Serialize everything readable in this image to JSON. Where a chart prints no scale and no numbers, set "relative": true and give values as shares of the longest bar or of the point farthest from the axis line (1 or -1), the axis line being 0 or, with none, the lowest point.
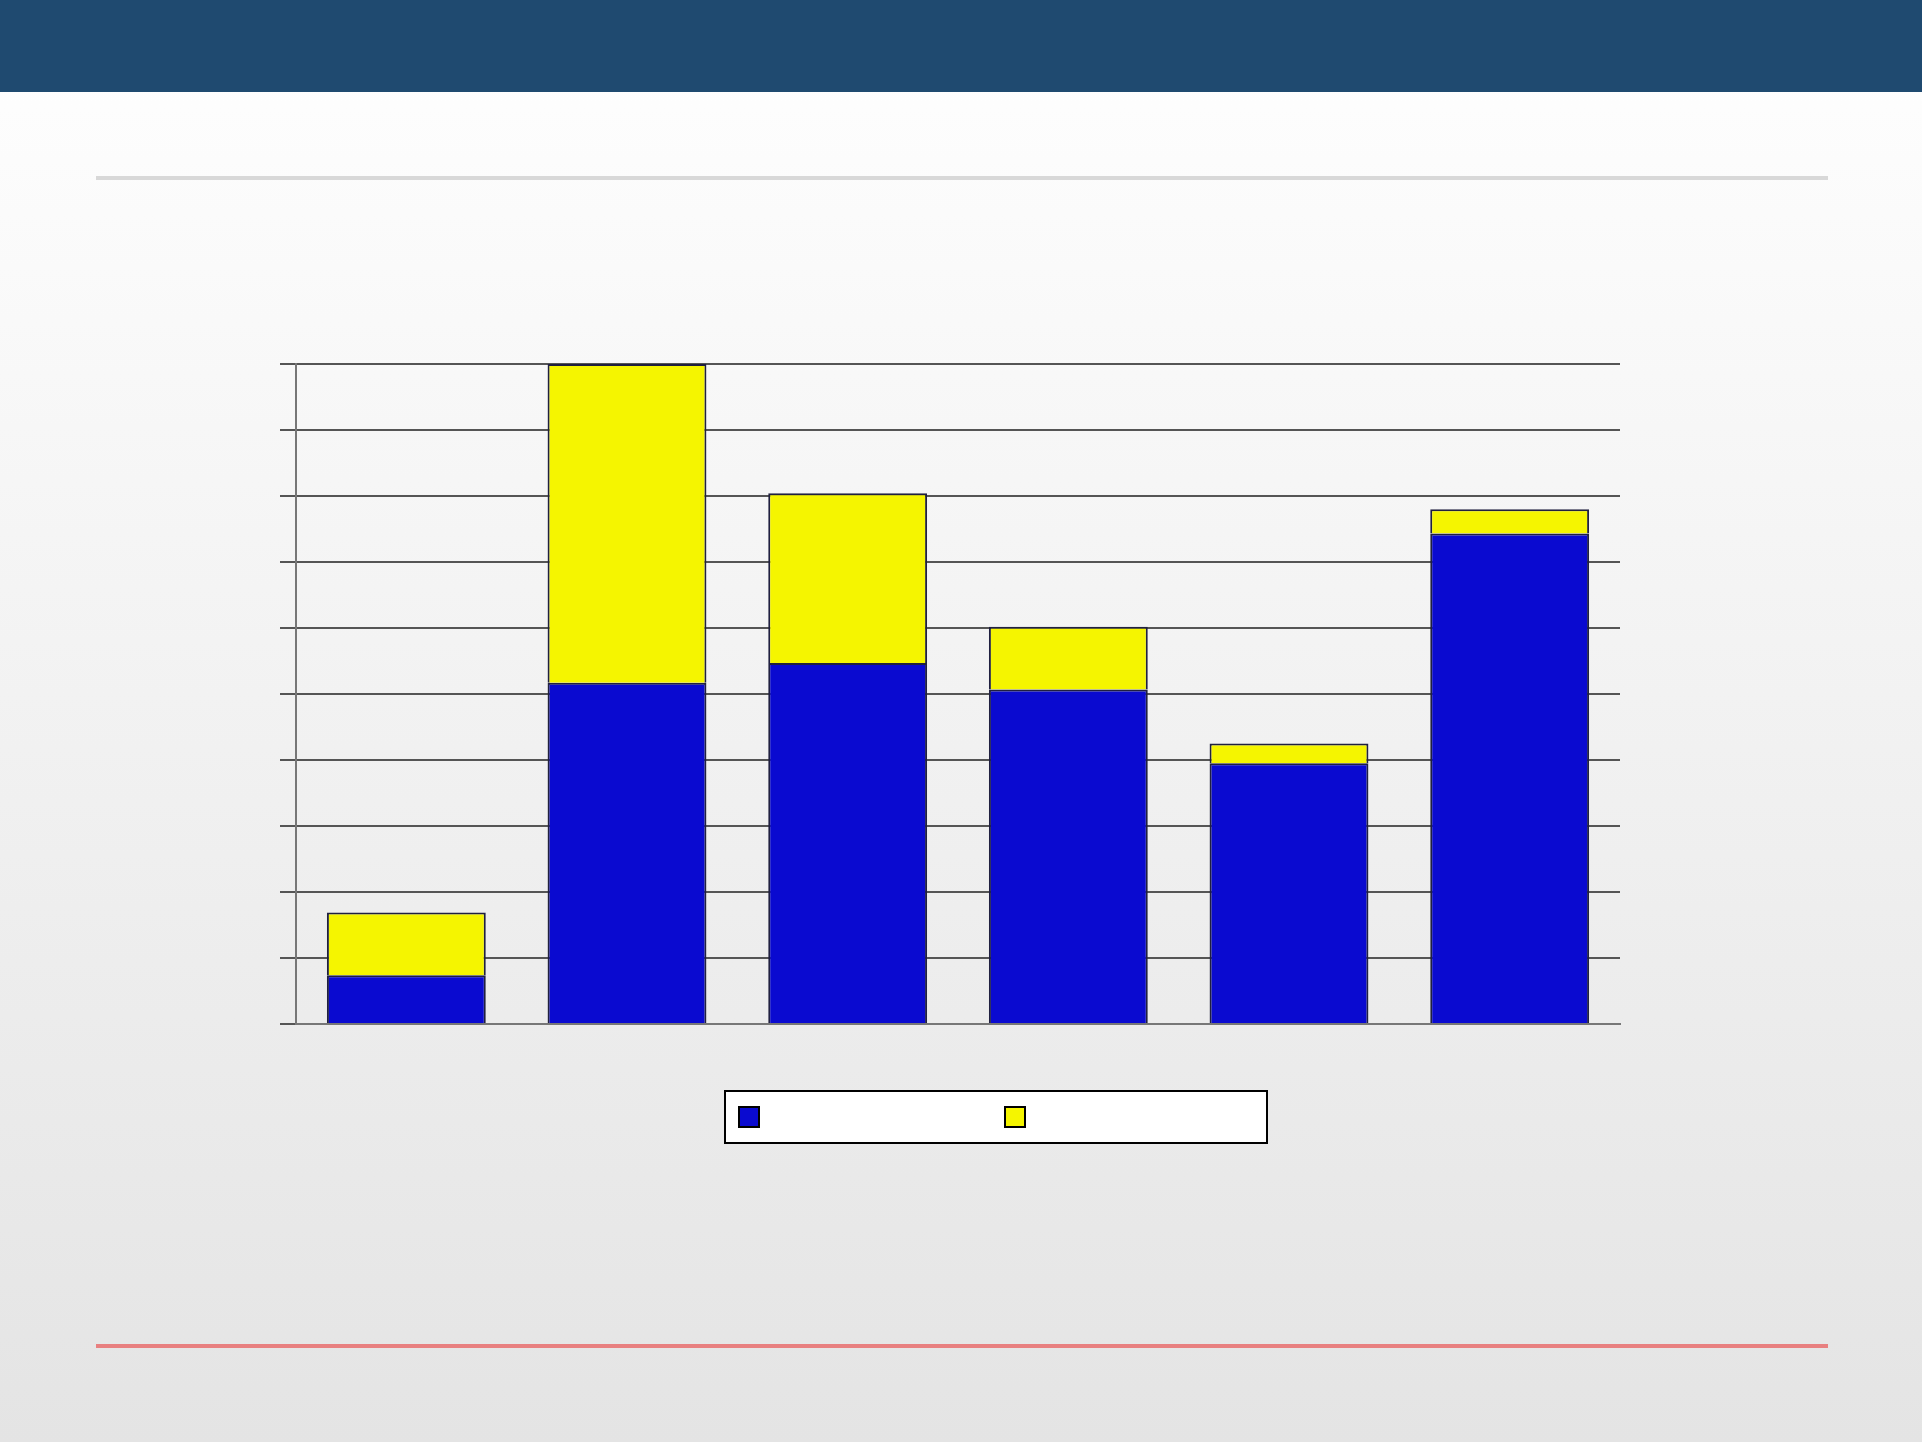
{
  "chart_data": {
    "type": "bar",
    "relative": true,
    "stacked": true,
    "categories": [
      null,
      null,
      null,
      null,
      null,
      null
    ],
    "series": [
      {
        "color": "#0a0ad0",
        "values": [
          0.074,
          0.517,
          0.547,
          0.507,
          0.395,
          0.743
        ]
      },
      {
        "color": "#f5f500",
        "values": [
          0.095,
          0.483,
          0.257,
          0.095,
          0.03,
          0.037
        ]
      }
    ],
    "grid": "y"
  }
}
